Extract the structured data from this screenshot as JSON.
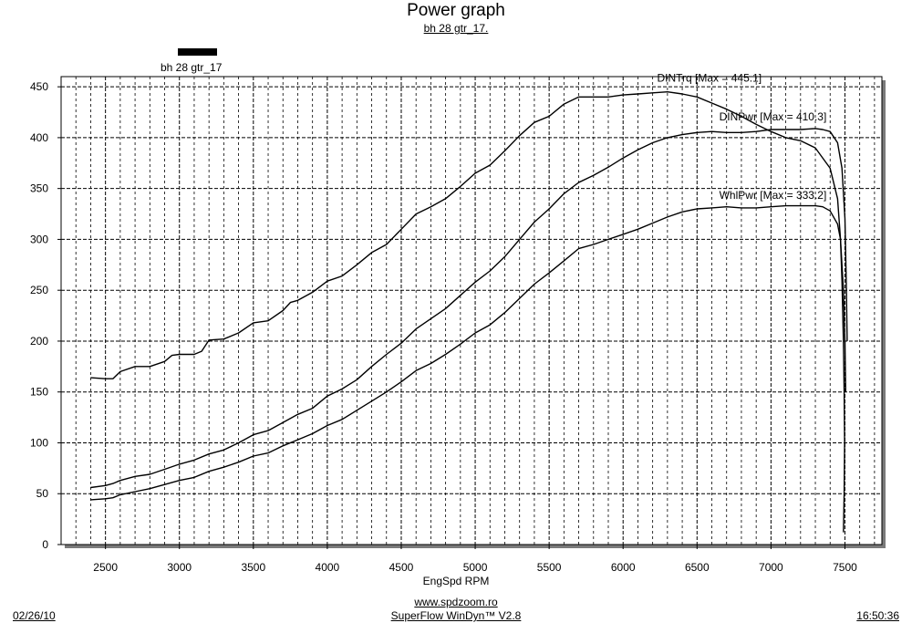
{
  "header": {
    "title": "Power graph",
    "subtitle": "bh 28 gtr_17."
  },
  "legend": {
    "label": "bh 28 gtr_17"
  },
  "footer": {
    "website": "www.spdzoom.ro",
    "software": "SuperFlow WinDyn™ V2.8",
    "date": "02/26/10",
    "time": "16:50:36"
  },
  "chart_data": {
    "type": "line",
    "xlabel": "EngSpd  RPM",
    "ylabel": "",
    "xlim": [
      2200,
      7750
    ],
    "ylim": [
      0,
      460
    ],
    "xticks": [
      2500,
      3000,
      3500,
      4000,
      4500,
      5000,
      5500,
      6000,
      6500,
      7000,
      7500
    ],
    "yticks": [
      0,
      50,
      100,
      150,
      200,
      250,
      300,
      350,
      400,
      450
    ],
    "grid": true,
    "series": [
      {
        "name": "DINTrq",
        "label": "DINTrq [Max = 445.1]",
        "points": [
          [
            2400,
            164
          ],
          [
            2500,
            163
          ],
          [
            2550,
            163
          ],
          [
            2600,
            170
          ],
          [
            2700,
            175
          ],
          [
            2800,
            175
          ],
          [
            2900,
            180
          ],
          [
            2950,
            186
          ],
          [
            3000,
            187
          ],
          [
            3100,
            187
          ],
          [
            3150,
            190
          ],
          [
            3200,
            201
          ],
          [
            3300,
            202
          ],
          [
            3400,
            208
          ],
          [
            3500,
            218
          ],
          [
            3600,
            220
          ],
          [
            3700,
            230
          ],
          [
            3750,
            238
          ],
          [
            3800,
            240
          ],
          [
            3900,
            248
          ],
          [
            4000,
            259
          ],
          [
            4100,
            264
          ],
          [
            4200,
            275
          ],
          [
            4300,
            287
          ],
          [
            4400,
            295
          ],
          [
            4500,
            310
          ],
          [
            4600,
            325
          ],
          [
            4700,
            332
          ],
          [
            4800,
            340
          ],
          [
            4900,
            352
          ],
          [
            5000,
            365
          ],
          [
            5100,
            373
          ],
          [
            5200,
            387
          ],
          [
            5300,
            402
          ],
          [
            5400,
            415
          ],
          [
            5500,
            421
          ],
          [
            5600,
            433
          ],
          [
            5700,
            440
          ],
          [
            5800,
            440
          ],
          [
            5900,
            440
          ],
          [
            6000,
            442
          ],
          [
            6100,
            443
          ],
          [
            6200,
            444
          ],
          [
            6300,
            445
          ],
          [
            6400,
            443
          ],
          [
            6500,
            440
          ],
          [
            6600,
            434
          ],
          [
            6700,
            428
          ],
          [
            6800,
            421
          ],
          [
            6900,
            413
          ],
          [
            7000,
            406
          ],
          [
            7100,
            400
          ],
          [
            7200,
            397
          ],
          [
            7300,
            390
          ],
          [
            7400,
            370
          ],
          [
            7450,
            340
          ],
          [
            7470,
            300
          ],
          [
            7490,
            250
          ],
          [
            7500,
            200
          ],
          [
            7505,
            150
          ]
        ]
      },
      {
        "name": "DINPwr",
        "label": "DINPwr [Max = 410.3]",
        "points": [
          [
            2400,
            56
          ],
          [
            2500,
            58
          ],
          [
            2550,
            60
          ],
          [
            2600,
            63
          ],
          [
            2700,
            67
          ],
          [
            2800,
            69
          ],
          [
            2900,
            74
          ],
          [
            3000,
            79
          ],
          [
            3100,
            83
          ],
          [
            3200,
            89
          ],
          [
            3300,
            93
          ],
          [
            3400,
            100
          ],
          [
            3500,
            108
          ],
          [
            3600,
            112
          ],
          [
            3700,
            120
          ],
          [
            3800,
            128
          ],
          [
            3900,
            134
          ],
          [
            4000,
            146
          ],
          [
            4100,
            153
          ],
          [
            4200,
            162
          ],
          [
            4300,
            175
          ],
          [
            4400,
            187
          ],
          [
            4500,
            198
          ],
          [
            4600,
            212
          ],
          [
            4700,
            222
          ],
          [
            4800,
            232
          ],
          [
            4900,
            245
          ],
          [
            5000,
            258
          ],
          [
            5100,
            269
          ],
          [
            5200,
            283
          ],
          [
            5300,
            300
          ],
          [
            5400,
            317
          ],
          [
            5500,
            330
          ],
          [
            5600,
            345
          ],
          [
            5700,
            356
          ],
          [
            5800,
            363
          ],
          [
            5900,
            371
          ],
          [
            6000,
            380
          ],
          [
            6100,
            388
          ],
          [
            6200,
            395
          ],
          [
            6300,
            400
          ],
          [
            6400,
            403
          ],
          [
            6500,
            405
          ],
          [
            6600,
            406
          ],
          [
            6700,
            405
          ],
          [
            6800,
            405
          ],
          [
            6900,
            406
          ],
          [
            7000,
            408
          ],
          [
            7100,
            408
          ],
          [
            7200,
            408
          ],
          [
            7300,
            409
          ],
          [
            7350,
            408
          ],
          [
            7400,
            406
          ],
          [
            7450,
            395
          ],
          [
            7480,
            370
          ],
          [
            7500,
            320
          ],
          [
            7510,
            250
          ],
          [
            7515,
            200
          ]
        ]
      },
      {
        "name": "WhlPwr",
        "label": "WhlPwr [Max = 333.2]",
        "points": [
          [
            2400,
            44
          ],
          [
            2500,
            45
          ],
          [
            2550,
            46
          ],
          [
            2600,
            49
          ],
          [
            2700,
            52
          ],
          [
            2800,
            55
          ],
          [
            2900,
            59
          ],
          [
            3000,
            63
          ],
          [
            3100,
            66
          ],
          [
            3200,
            72
          ],
          [
            3300,
            76
          ],
          [
            3400,
            81
          ],
          [
            3500,
            87
          ],
          [
            3600,
            90
          ],
          [
            3700,
            97
          ],
          [
            3800,
            103
          ],
          [
            3900,
            109
          ],
          [
            4000,
            117
          ],
          [
            4100,
            123
          ],
          [
            4200,
            132
          ],
          [
            4300,
            141
          ],
          [
            4400,
            150
          ],
          [
            4500,
            160
          ],
          [
            4600,
            171
          ],
          [
            4700,
            178
          ],
          [
            4800,
            187
          ],
          [
            4900,
            197
          ],
          [
            5000,
            208
          ],
          [
            5100,
            216
          ],
          [
            5200,
            228
          ],
          [
            5300,
            242
          ],
          [
            5400,
            256
          ],
          [
            5500,
            267
          ],
          [
            5600,
            279
          ],
          [
            5700,
            291
          ],
          [
            5800,
            295
          ],
          [
            5900,
            300
          ],
          [
            6000,
            305
          ],
          [
            6100,
            310
          ],
          [
            6200,
            316
          ],
          [
            6300,
            322
          ],
          [
            6400,
            327
          ],
          [
            6500,
            330
          ],
          [
            6600,
            331
          ],
          [
            6700,
            332
          ],
          [
            6800,
            331
          ],
          [
            6900,
            331
          ],
          [
            7000,
            332
          ],
          [
            7100,
            333
          ],
          [
            7200,
            333
          ],
          [
            7300,
            333
          ],
          [
            7350,
            332
          ],
          [
            7400,
            328
          ],
          [
            7450,
            315
          ],
          [
            7470,
            300
          ],
          [
            7480,
            260
          ],
          [
            7490,
            200
          ],
          [
            7495,
            150
          ],
          [
            7498,
            100
          ],
          [
            7495,
            50
          ],
          [
            7490,
            12
          ]
        ]
      }
    ]
  }
}
